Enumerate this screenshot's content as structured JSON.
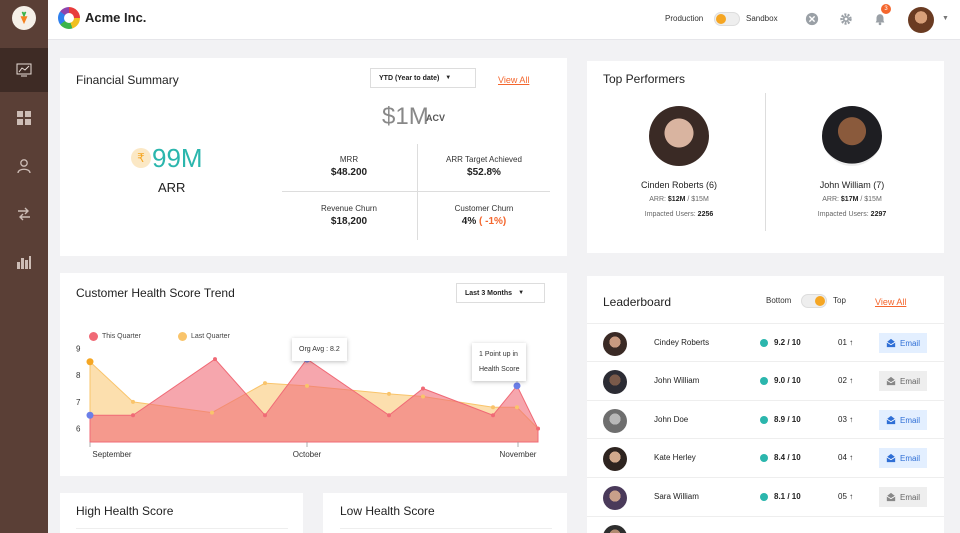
{
  "header": {
    "brand": "Acme Inc.",
    "env_left": "Production",
    "env_right": "Sandbox",
    "notification_count": "3"
  },
  "sidebar": {
    "items": [
      {
        "icon": "chart-line-icon",
        "active": true
      },
      {
        "icon": "grid-icon",
        "active": false
      },
      {
        "icon": "user-icon",
        "active": false
      },
      {
        "icon": "transfer-icon",
        "active": false
      },
      {
        "icon": "bar-chart-icon",
        "active": false
      }
    ]
  },
  "financial": {
    "title": "Financial Summary",
    "period": "YTD (Year to date)",
    "view_all": "View All",
    "acv_value": "$1M",
    "acv_label": "ACV",
    "arr_value": "99M",
    "arr_label": "ARR",
    "arr_symbol": "₹",
    "metrics": [
      {
        "label": "MRR",
        "value": "$48.200"
      },
      {
        "label": "ARR Target Achieved",
        "value": "$52.8%"
      },
      {
        "label": "Revenue Churn",
        "value": "$18,200"
      },
      {
        "label": "Customer Churn",
        "value": "4%",
        "delta": "( -1%)"
      }
    ]
  },
  "top_performers": {
    "title": "Top Performers",
    "people": [
      {
        "name": "Cinden Roberts (6)",
        "arr_label": "ARR:",
        "arr_value": "$12M",
        "arr_target": "/ $15M",
        "impacted_label": "Impacted Users:",
        "impacted_value": "2256"
      },
      {
        "name": "John William (7)",
        "arr_label": "ARR:",
        "arr_value": "$17M",
        "arr_target": "/ $15M",
        "impacted_label": "Impacted Users:",
        "impacted_value": "2297"
      }
    ]
  },
  "health_trend": {
    "title": "Customer Health Score Trend",
    "period": "Last 3 Months",
    "legend": [
      "This Quarter",
      "Last Quarter"
    ],
    "tooltip_org": "Org Avg : 8.2",
    "tooltip_point_1": "1 Point up in",
    "tooltip_point_2": "Health Score",
    "colors": {
      "this_quarter": "#f06a76",
      "last_quarter": "#f9c46b",
      "marker": "#6b7fe8"
    }
  },
  "chart_data": {
    "type": "area",
    "x_labels": [
      "September",
      "October",
      "November"
    ],
    "y_ticks": [
      9,
      8,
      7,
      6
    ],
    "ylim": [
      5.5,
      9.5
    ],
    "series": [
      {
        "name": "This Quarter",
        "values": [
          6.5,
          6.5,
          8.6,
          6.5,
          8.6,
          6.5,
          7.5,
          6.5,
          7.6,
          6.0
        ]
      },
      {
        "name": "Last Quarter",
        "values": [
          8.5,
          7.0,
          6.6,
          7.7,
          7.6,
          7.3,
          7.2,
          6.8,
          6.8,
          6.0
        ]
      }
    ],
    "markers": [
      {
        "series": "Last Quarter",
        "index": 0,
        "value": 8.5
      },
      {
        "series": "This Quarter",
        "index": 0,
        "value": 6.5
      },
      {
        "series": "This Quarter",
        "index": 4,
        "value": 8.6
      },
      {
        "series": "This Quarter",
        "index": 8,
        "value": 7.6
      }
    ]
  },
  "high_health": {
    "title": "High Health Score"
  },
  "low_health": {
    "title": "Low Health Score"
  },
  "leaderboard": {
    "title": "Leaderboard",
    "toggle_left": "Bottom",
    "toggle_right": "Top",
    "view_all": "View All",
    "rows": [
      {
        "name": "Cindey Roberts",
        "score": "9.2 / 10",
        "rank": "01",
        "email": "Email",
        "email_active": true
      },
      {
        "name": "John William",
        "score": "9.0 / 10",
        "rank": "02",
        "email": "Email",
        "email_active": false
      },
      {
        "name": "John Doe",
        "score": "8.9 / 10",
        "rank": "03",
        "email": "Email",
        "email_active": true
      },
      {
        "name": "Kate Herley",
        "score": "8.4 / 10",
        "rank": "04",
        "email": "Email",
        "email_active": true
      },
      {
        "name": "Sara William",
        "score": "8.1 / 10",
        "rank": "05",
        "email": "Email",
        "email_active": false
      }
    ],
    "colors": {
      "score_dot": "#2bb6ad",
      "accent": "#f4662d"
    }
  }
}
